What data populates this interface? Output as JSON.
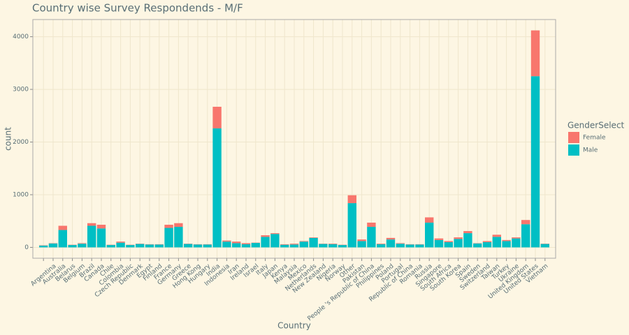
{
  "chart_data": {
    "type": "stacked_bar",
    "title": "Country wise Survey Respondends - M/F",
    "x_label": "Country",
    "y_label": "count",
    "legend_title": "GenderSelect",
    "legend_position": "right",
    "categories": [
      null,
      "Argentina",
      "Australia",
      "Belarus",
      "Belgium",
      "Brazil",
      "Canada",
      "Chile",
      "Colombia",
      "Czech Republic",
      "Denmark",
      "Egypt",
      "Finland",
      "France",
      "Germany",
      "Greece",
      "Hong Kong",
      "Hungary",
      "India",
      "Indonesia",
      "Iran",
      "Ireland",
      "Israel",
      "Italy",
      "Japan",
      "Kenya",
      "Malaysia",
      "Mexico",
      "Netherlands",
      "New Zealand",
      "Nigeria",
      "Norway",
      "Other",
      "Pakistan",
      "People 's Republic of China",
      "Philippines",
      "Poland",
      "Portugal",
      "Republic of China",
      "Romania",
      "Russia",
      "Singapore",
      "South Africa",
      "South Korea",
      "Spain",
      "Sweden",
      "Switzerland",
      "Taiwan",
      "Turkey",
      "Ukraine",
      "United Kingdom",
      "United States",
      "Vietnam"
    ],
    "series": [
      {
        "name": "Female",
        "color": "#F8766D",
        "values": [
          5,
          5,
          80,
          5,
          10,
          50,
          70,
          5,
          20,
          5,
          5,
          5,
          5,
          60,
          70,
          5,
          5,
          5,
          410,
          20,
          30,
          20,
          5,
          30,
          15,
          10,
          15,
          10,
          10,
          5,
          10,
          5,
          150,
          30,
          80,
          10,
          30,
          10,
          5,
          5,
          100,
          30,
          20,
          30,
          40,
          5,
          20,
          40,
          20,
          20,
          80,
          870,
          5
        ]
      },
      {
        "name": "Male",
        "color": "#00BFC4",
        "values": [
          35,
          75,
          330,
          45,
          70,
          410,
          360,
          45,
          90,
          45,
          65,
          55,
          55,
          370,
          390,
          65,
          55,
          55,
          2260,
          110,
          80,
          60,
          85,
          200,
          255,
          50,
          55,
          110,
          180,
          65,
          60,
          45,
          840,
          120,
          390,
          60,
          150,
          70,
          55,
          55,
          470,
          140,
          100,
          160,
          270,
          75,
          100,
          200,
          120,
          170,
          440,
          3250,
          65
        ]
      }
    ],
    "ylim": [
      -206,
      4326
    ],
    "yticks": [
      0,
      1000,
      2000,
      3000,
      4000
    ],
    "grid": true
  }
}
